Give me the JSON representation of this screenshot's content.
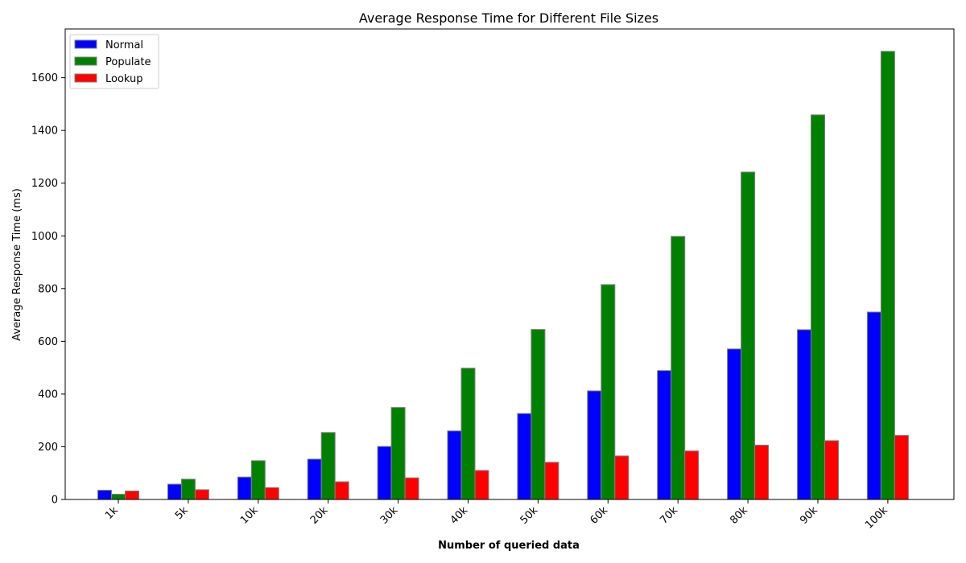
{
  "chart_data": {
    "type": "bar",
    "title": "Average Response Time for Different File Sizes",
    "xlabel": "Number of queried data",
    "ylabel": "Average Response Time (ms)",
    "categories": [
      "1k",
      "5k",
      "10k",
      "20k",
      "30k",
      "40k",
      "50k",
      "60k",
      "70k",
      "80k",
      "90k",
      "100k"
    ],
    "series": [
      {
        "name": "Normal",
        "color": "#0000ff",
        "values": [
          35,
          58,
          85,
          153,
          201,
          260,
          326,
          412,
          489,
          571,
          644,
          711
        ]
      },
      {
        "name": "Populate",
        "color": "#008000",
        "values": [
          20,
          77,
          147,
          254,
          349,
          498,
          645,
          815,
          998,
          1242,
          1459,
          1700
        ]
      },
      {
        "name": "Lookup",
        "color": "#ff0000",
        "values": [
          32,
          37,
          45,
          67,
          82,
          110,
          141,
          165,
          184,
          206,
          223,
          243
        ]
      }
    ],
    "ylim": [
      0,
      1785
    ],
    "yticks": [
      0,
      200,
      400,
      600,
      800,
      1000,
      1200,
      1400,
      1600
    ],
    "grid": false,
    "legend_position": "top-left",
    "bar_edge_color": "#808080"
  }
}
